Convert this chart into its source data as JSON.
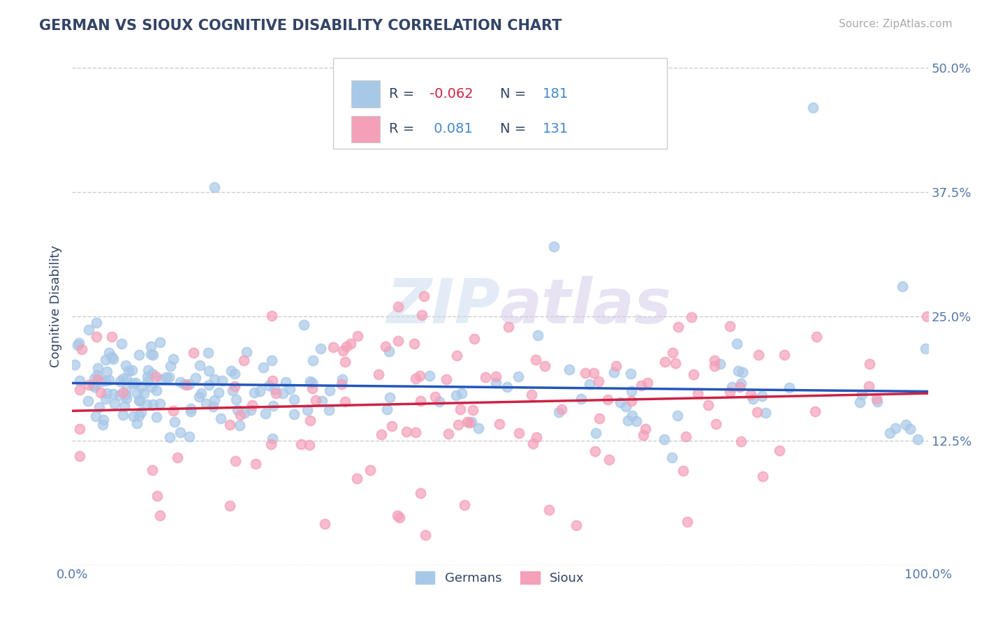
{
  "title": "GERMAN VS SIOUX COGNITIVE DISABILITY CORRELATION CHART",
  "source": "Source: ZipAtlas.com",
  "ylabel": "Cognitive Disability",
  "x_min": 0.0,
  "x_max": 1.0,
  "y_min": 0.0,
  "y_max": 0.52,
  "yticks": [
    0.0,
    0.125,
    0.25,
    0.375,
    0.5
  ],
  "ytick_labels": [
    "",
    "12.5%",
    "25.0%",
    "37.5%",
    "50.0%"
  ],
  "xtick_labels": [
    "0.0%",
    "100.0%"
  ],
  "german_color": "#a8c8e8",
  "sioux_color": "#f4a0b8",
  "german_line_color": "#2255bb",
  "sioux_line_color": "#cc2244",
  "german_R": -0.062,
  "german_N": 181,
  "sioux_R": 0.081,
  "sioux_N": 131,
  "title_color": "#334466",
  "axis_label_color": "#334466",
  "tick_color": "#5577aa",
  "grid_color": "#cccccc",
  "background_color": "#ffffff",
  "legend_text_color": "#334466",
  "legend_N_color": "#4488cc",
  "legend_R_neg_color": "#cc2244",
  "legend_R_pos_color": "#4488cc"
}
